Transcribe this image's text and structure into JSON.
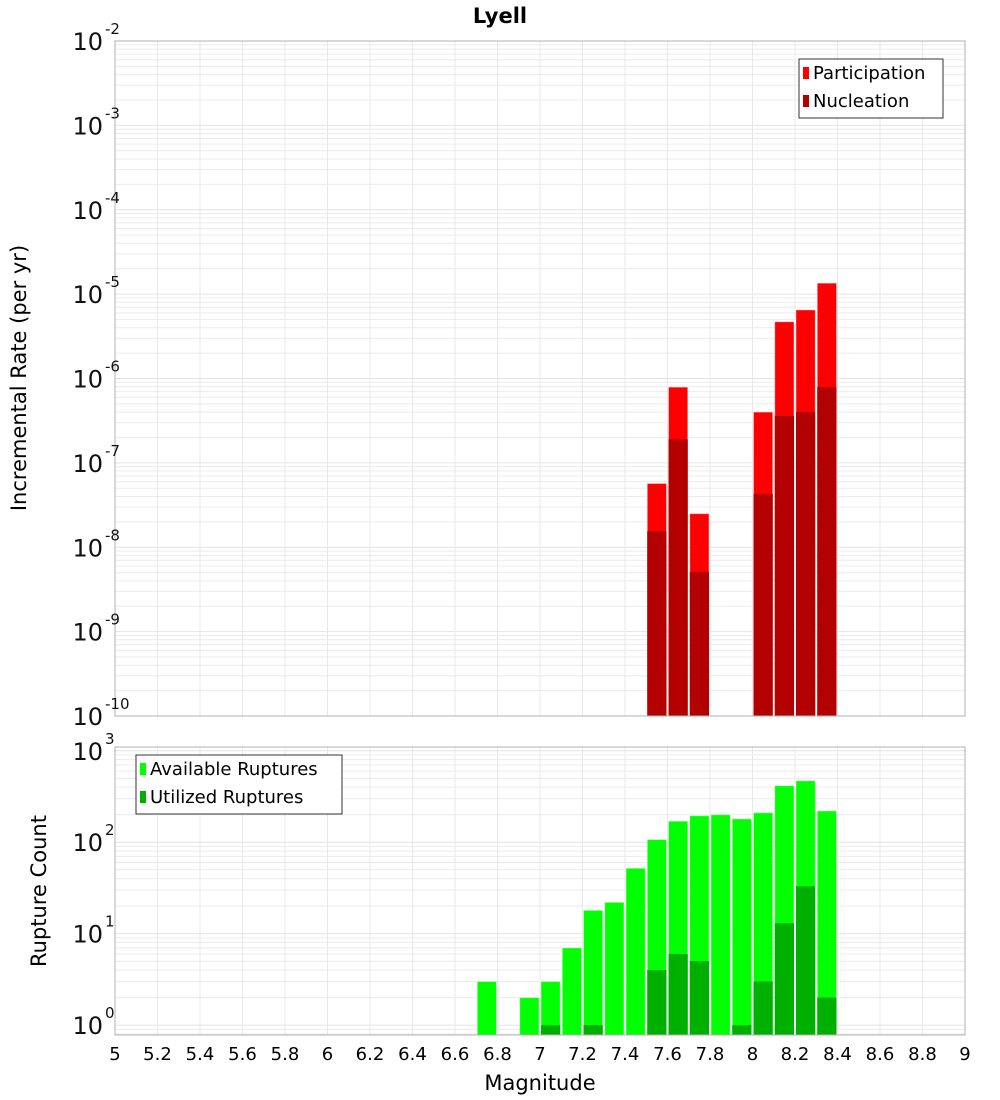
{
  "chart_data": [
    {
      "type": "bar",
      "title": "Lyell",
      "xlabel": "Magnitude",
      "ylabel": "Incremental Rate (per yr)",
      "yscale": "log",
      "xlim": [
        5,
        9
      ],
      "ylim": [
        1e-10,
        0.01
      ],
      "ytick_exponents": [
        -10,
        -9,
        -8,
        -7,
        -6,
        -5,
        -4,
        -3,
        -2
      ],
      "legend_position": "top-right",
      "x": [
        7.55,
        7.65,
        7.75,
        8.05,
        8.15,
        8.25,
        8.35
      ],
      "series": [
        {
          "name": "Participation",
          "color": "#ff0000",
          "values": [
            5.7e-08,
            7.9e-07,
            2.5e-08,
            4e-07,
            4.7e-06,
            6.5e-06,
            1.35e-05
          ]
        },
        {
          "name": "Nucleation",
          "color": "#b30000",
          "values": [
            1.55e-08,
            1.9e-07,
            5.1e-09,
            4.3e-08,
            3.6e-07,
            4e-07,
            7.9e-07
          ]
        }
      ]
    },
    {
      "type": "bar",
      "xlabel": "Magnitude",
      "ylabel": "Rupture Count",
      "yscale": "log",
      "xlim": [
        5,
        9
      ],
      "ylim": [
        0.78,
        1100
      ],
      "ytick_exponents": [
        0,
        1,
        2,
        3
      ],
      "xticks": [
        "5",
        "5.2",
        "5.4",
        "5.6",
        "5.8",
        "6",
        "6.2",
        "6.4",
        "6.6",
        "6.8",
        "7",
        "7.2",
        "7.4",
        "7.6",
        "7.8",
        "8",
        "8.2",
        "8.4",
        "8.6",
        "8.8",
        "9"
      ],
      "legend_position": "top-left",
      "x": [
        6.75,
        6.95,
        7.05,
        7.15,
        7.25,
        7.35,
        7.45,
        7.55,
        7.65,
        7.75,
        7.85,
        7.95,
        8.05,
        8.15,
        8.25,
        8.35
      ],
      "series": [
        {
          "name": "Available Ruptures",
          "color": "#00ff00",
          "values": [
            3,
            2,
            3,
            7,
            18,
            22,
            52,
            107,
            170,
            195,
            200,
            180,
            210,
            415,
            470,
            220
          ]
        },
        {
          "name": "Utilized Ruptures",
          "color": "#00b000",
          "values": [
            0,
            0,
            1,
            0,
            1,
            0,
            0,
            4,
            6,
            5,
            0,
            1,
            3,
            13,
            33,
            2
          ]
        }
      ]
    }
  ]
}
